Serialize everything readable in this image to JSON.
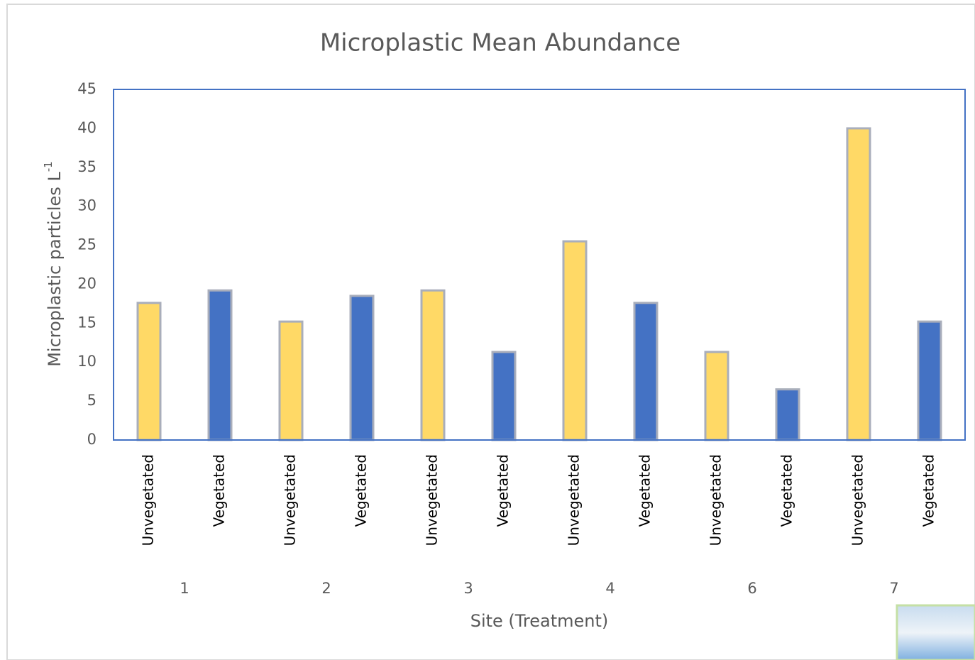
{
  "chart_data": {
    "type": "bar",
    "title": "Microplastic Mean Abundance",
    "x_label": "Site (Treatment)",
    "y_label": "Microplastic particles L",
    "y_label_superscript": "-1",
    "categories": [
      "Unvegetated",
      "Vegetated",
      "Unvegetated",
      "Vegetated",
      "Unvegetated",
      "Vegetated",
      "Unvegetated",
      "Vegetated",
      "Unvegetated",
      "Vegetated",
      "Unvegetated",
      "Vegetated"
    ],
    "groups": [
      "1",
      "2",
      "3",
      "4",
      "6",
      "7"
    ],
    "values": [
      17.6,
      19.2,
      15.2,
      18.5,
      19.2,
      11.3,
      25.5,
      17.6,
      11.3,
      6.5,
      40,
      15.2
    ],
    "colors": [
      "#ffd966",
      "#4472c4",
      "#ffd966",
      "#4472c4",
      "#ffd966",
      "#4472c4",
      "#ffd966",
      "#4472c4",
      "#ffd966",
      "#4472c4",
      "#ffd966",
      "#4472c4"
    ],
    "ylim": [
      0,
      45
    ],
    "yticks": [
      0,
      5,
      10,
      15,
      20,
      25,
      30,
      35,
      40,
      45
    ],
    "grid": false
  }
}
